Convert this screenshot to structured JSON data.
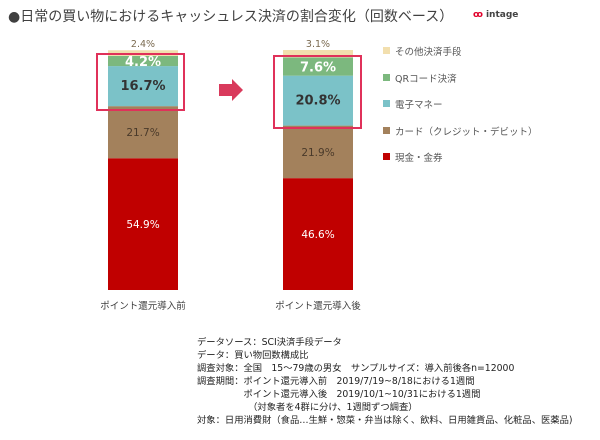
{
  "title": "●日常の買い物におけるキャッシュレス決済の割合変化（回数ベース）",
  "logo": {
    "text": "intage"
  },
  "chart_data": {
    "type": "bar",
    "stacked": true,
    "categories": [
      "ポイント還元導入前",
      "ポイント還元導入後"
    ],
    "ylim": [
      0,
      100
    ],
    "series": [
      {
        "name": "現金・金券",
        "color": "#c00000",
        "values": [
          54.9,
          46.6
        ],
        "labels": [
          "54.9%",
          "46.6%"
        ]
      },
      {
        "name": "カード（クレジット・デビット）",
        "color": "#a3815c",
        "values": [
          21.7,
          21.9
        ],
        "labels": [
          "21.7%",
          "21.9%"
        ]
      },
      {
        "name": "電子マネー",
        "color": "#7bc2c8",
        "values": [
          16.7,
          20.8
        ],
        "labels": [
          "16.7%",
          "20.8%"
        ]
      },
      {
        "name": "QRコード決済",
        "color": "#7cb87e",
        "values": [
          4.2,
          7.6
        ],
        "labels": [
          "4.2%",
          "7.6%"
        ]
      },
      {
        "name": "その他決済手段",
        "color": "#f2dfae",
        "values": [
          2.4,
          3.1
        ],
        "labels": [
          "2.4%",
          "3.1%"
        ]
      }
    ]
  },
  "notes": [
    "データソース：SCI決済手段データ",
    "データ：買い物回数構成比",
    "調査対象：全国　15～79歳の男女　サンプルサイズ：導入前後各n=12000",
    "調査期間：ポイント還元導入前　2019/7/19~8/18における1週間",
    "　　　　　ポイント還元導入後　2019/10/1~10/31における1週間",
    "　　　　　　（対象者を4群に分け、1週間ずつ調査）",
    "対象：日用消費財（食品…生鮮・惣菜・弁当は除く、飲料、日用雑貨品、化粧品、医薬品)"
  ]
}
